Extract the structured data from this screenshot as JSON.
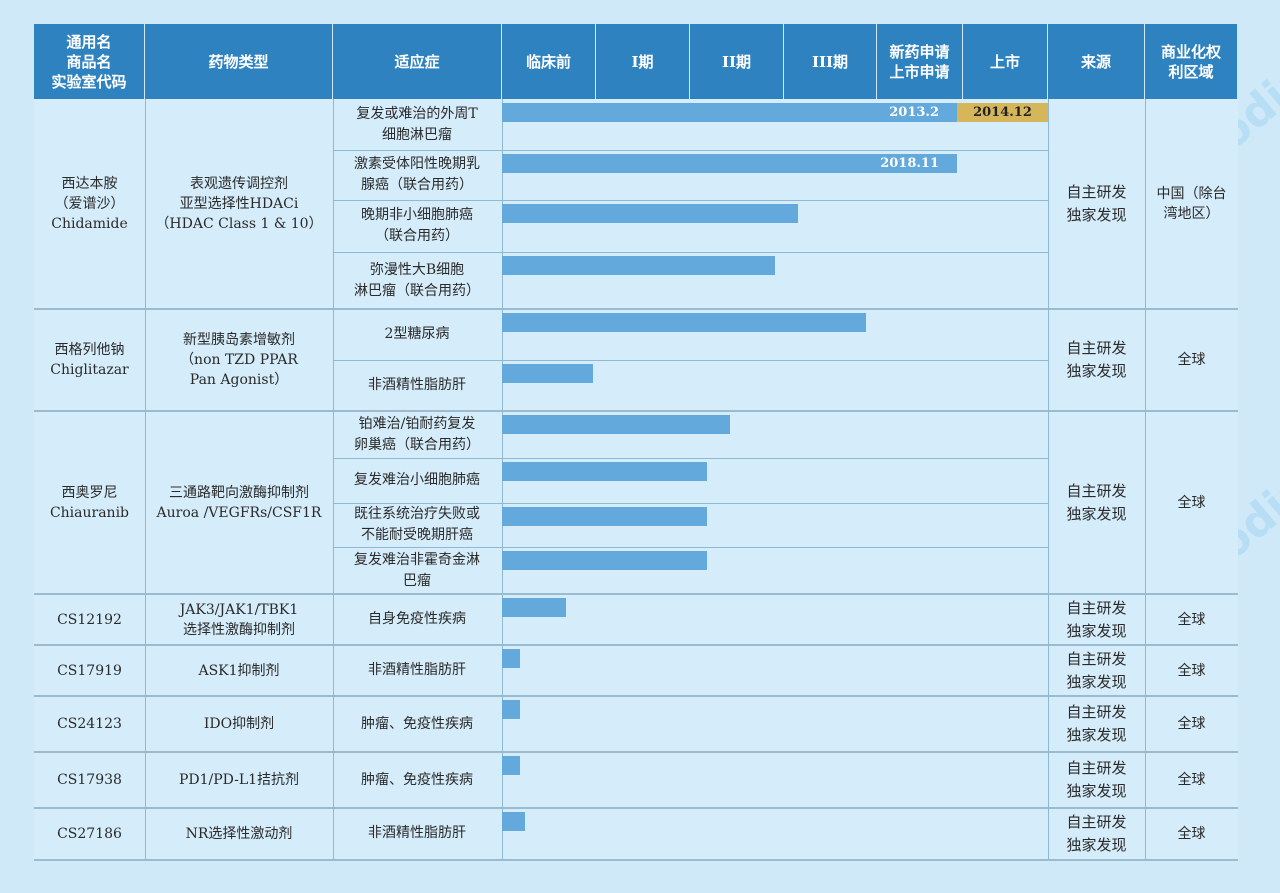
{
  "headers": [
    "通用名\n商品名\n实验室代码",
    "药物类型",
    "适应症",
    "临床前",
    "I期",
    "II期",
    "III期",
    "新药申请\n上市申请",
    "上市",
    "来源",
    "商业化权\n利区域"
  ],
  "stage_axis": [
    "临床前",
    "I期",
    "II期",
    "III期",
    "新药申请/上市申请",
    "上市"
  ],
  "drugs": [
    {
      "name": "西达本胺\n（爱谱沙）\nChidamide",
      "type": "表观遗传调控剂\n亚型选择性HDACi\n（HDAC Class 1 & 10）",
      "source": "自主研发\n独家发现",
      "region": "中国（除台\n湾地区）"
    },
    {
      "name": "西格列他钠\nChiglitazar",
      "type": "新型胰岛素增敏剂\n（non TZD PPAR\nPan Agonist）",
      "source": "自主研发\n独家发现",
      "region": "全球"
    },
    {
      "name": "西奥罗尼\nChiauranib",
      "type": "三通路靶向激酶抑制剂\nAuroa /VEGFRs/CSF1R",
      "source": "自主研发\n独家发现",
      "region": "全球"
    },
    {
      "name": "CS12192",
      "type": "JAK3/JAK1/TBK1\n选择性激酶抑制剂",
      "source": "自主研发\n独家发现",
      "region": "全球"
    },
    {
      "name": "CS17919",
      "type": "ASK1抑制剂",
      "source": "自主研发\n独家发现",
      "region": "全球"
    },
    {
      "name": "CS24123",
      "type": "IDO抑制剂",
      "source": "自主研发\n独家发现",
      "region": "全球"
    },
    {
      "name": "CS17938",
      "type": "PD1/PD-L1拮抗剂",
      "source": "自主研发\n独家发现",
      "region": "全球"
    },
    {
      "name": "CS27186",
      "type": "NR选择性激动剂",
      "source": "自主研发\n独家发现",
      "region": "全球"
    }
  ],
  "chart_data": {
    "type": "bar",
    "orientation": "horizontal",
    "value_unit": "development stage (0 = start of 临床前, 6 = end of 上市)",
    "categories": [
      "复发或难治的外周T细胞淋巴瘤",
      "激素受体阳性晚期乳腺癌（联合用药）",
      "晚期非小细胞肺癌（联合用药）",
      "弥漫性大B细胞淋巴瘤（联合用药）",
      "2型糖尿病",
      "非酒精性脂肪肝",
      "铂难治/铂耐药复发卵巢癌（联合用药）",
      "复发难治小细胞肺癌",
      "既往系统治疗失败或不能耐受晚期肝癌",
      "复发难治非霍奇金淋巴瘤",
      "自身免疫性疾病",
      "非酒精性脂肪肝",
      "肿瘤、免疫性疾病",
      "肿瘤、免疫性疾病",
      "非酒精性脂肪肝"
    ],
    "indication_labels": [
      "复发或难治的外周T\n细胞淋巴瘤",
      "激素受体阳性晚期乳\n腺癌（联合用药）",
      "晚期非小细胞肺癌\n（联合用药）",
      "弥漫性大B细胞\n淋巴瘤（联合用药）",
      "2型糖尿病",
      "非酒精性脂肪肝",
      "铂难治/铂耐药复发\n卵巢癌（联合用药）",
      "复发难治小细胞肺癌",
      "既往系统治疗失败或\n不能耐受晚期肝癌",
      "复发难治非霍奇金淋\n巴瘤",
      "自身免疫性疾病",
      "非酒精性脂肪肝",
      "肿瘤、免疫性疾病",
      "肿瘤、免疫性疾病",
      "非酒精性脂肪肝"
    ],
    "values": [
      5.0,
      5.0,
      3.25,
      3.0,
      4.0,
      1.0,
      2.5,
      2.25,
      2.25,
      2.25,
      0.7,
      0.2,
      0.2,
      0.2,
      0.25
    ],
    "bar_labels": [
      "2013.2",
      "2018.11",
      "",
      "",
      "",
      "",
      "",
      "",
      "",
      "",
      "",
      "",
      "",
      "",
      ""
    ],
    "marketed_labels": [
      "2014.12",
      "",
      "",
      "",
      "",
      "",
      "",
      "",
      "",
      "",
      "",
      "",
      "",
      "",
      ""
    ],
    "xlim": [
      0,
      6
    ],
    "grid": true,
    "legend": "none",
    "colors": {
      "bar": "#64a9dc",
      "marketed": "#d6b65a",
      "header": "#2f82c0"
    }
  }
}
